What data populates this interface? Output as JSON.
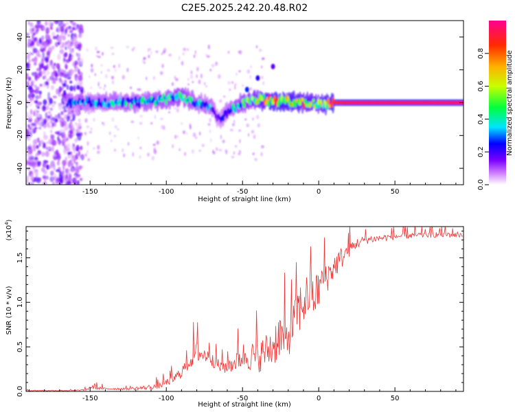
{
  "title": "C2E5.2025.242.20.48.R02",
  "chart_data": [
    {
      "type": "heatmap",
      "xlabel": "Height of straight line (km)",
      "ylabel": "Frequency (Hz)",
      "xlim": [
        -192,
        95
      ],
      "ylim": [
        -50,
        50
      ],
      "xticks": [
        -150,
        -100,
        -50,
        0,
        50
      ],
      "yticks": [
        -40,
        -20,
        0,
        20,
        40
      ],
      "colorbar": {
        "label": "Normalized spectral amplitude",
        "range": [
          0.0,
          1.0
        ],
        "ticks": [
          0.0,
          0.2,
          0.4,
          0.6,
          0.8
        ],
        "tick_labels": [
          "0.0",
          "0.2",
          "0.4",
          "0.6",
          "0.8"
        ],
        "colors": [
          "#ffffff",
          "#d080ff",
          "#7a00ff",
          "#0000ff",
          "#00e5ff",
          "#00ff3c",
          "#c8ff00",
          "#ffb000",
          "#ff2a00",
          "#ff0090"
        ]
      },
      "ridge": {
        "x": [
          -165,
          -140,
          -120,
          -100,
          -90,
          -80,
          -70,
          -66,
          -60,
          -50,
          -40,
          -30,
          -20,
          -10,
          0,
          10,
          20,
          40,
          60,
          80,
          95
        ],
        "frequency": [
          0,
          0,
          0,
          2,
          4,
          0,
          -2,
          -10,
          -6,
          0,
          2,
          1,
          1,
          0,
          -1,
          0,
          0,
          0,
          0,
          0,
          0
        ],
        "amplitude": [
          0.35,
          0.45,
          0.45,
          0.5,
          0.55,
          0.45,
          0.4,
          0.3,
          0.4,
          0.55,
          0.7,
          0.85,
          0.8,
          0.75,
          0.7,
          0.9,
          0.95,
          0.95,
          0.95,
          0.95,
          0.95
        ]
      },
      "noise_region": {
        "x_from": -192,
        "x_to": -155,
        "amplitude": 0.25
      }
    },
    {
      "type": "line",
      "xlabel": "Height of straight line (km)",
      "ylabel": "SNR (10 * v/v)",
      "y_multiplier": "(x10",
      "y_multiplier_exp": "4",
      "y_multiplier_close": ")",
      "xlim": [
        -192,
        95
      ],
      "ylim": [
        0,
        1.85
      ],
      "xticks": [
        -150,
        -100,
        -50,
        0,
        50
      ],
      "yticks": [
        0.0,
        0.5,
        1.0,
        1.5
      ],
      "ytick_labels": [
        "0.0",
        "0.5",
        "1.0",
        "1.5"
      ],
      "line_color": "#ee3333",
      "series": [
        {
          "x": [
            -192,
            -160,
            -152,
            -150,
            -140,
            -125,
            -115,
            -105,
            -95,
            -90,
            -85,
            -80,
            -75,
            -72,
            -70,
            -65,
            -60,
            -55,
            -50,
            -45,
            -40,
            -35,
            -30,
            -26,
            -22,
            -18,
            -14,
            -10,
            -6,
            -3,
            0,
            3,
            6,
            10,
            15,
            20,
            25,
            30,
            40,
            50,
            60,
            75,
            95
          ],
          "y": [
            0.01,
            0.01,
            0.02,
            0.05,
            0.03,
            0.03,
            0.04,
            0.06,
            0.14,
            0.22,
            0.33,
            0.45,
            0.4,
            0.45,
            0.38,
            0.28,
            0.28,
            0.33,
            0.4,
            0.4,
            0.38,
            0.45,
            0.5,
            0.65,
            0.55,
            0.7,
            0.88,
            1.0,
            1.1,
            1.05,
            1.15,
            1.28,
            1.3,
            1.4,
            1.5,
            1.6,
            1.66,
            1.7,
            1.72,
            1.74,
            1.75,
            1.76,
            1.76
          ],
          "spread": [
            0.01,
            0.01,
            0.02,
            0.06,
            0.02,
            0.03,
            0.05,
            0.06,
            0.1,
            0.14,
            0.18,
            0.25,
            0.22,
            0.25,
            0.2,
            0.15,
            0.17,
            0.22,
            0.3,
            0.35,
            0.35,
            0.4,
            0.5,
            0.55,
            0.45,
            0.5,
            0.6,
            0.55,
            0.55,
            0.5,
            0.45,
            0.4,
            0.35,
            0.3,
            0.25,
            0.18,
            0.12,
            0.1,
            0.08,
            0.07,
            0.07,
            0.07,
            0.07
          ]
        }
      ]
    }
  ]
}
